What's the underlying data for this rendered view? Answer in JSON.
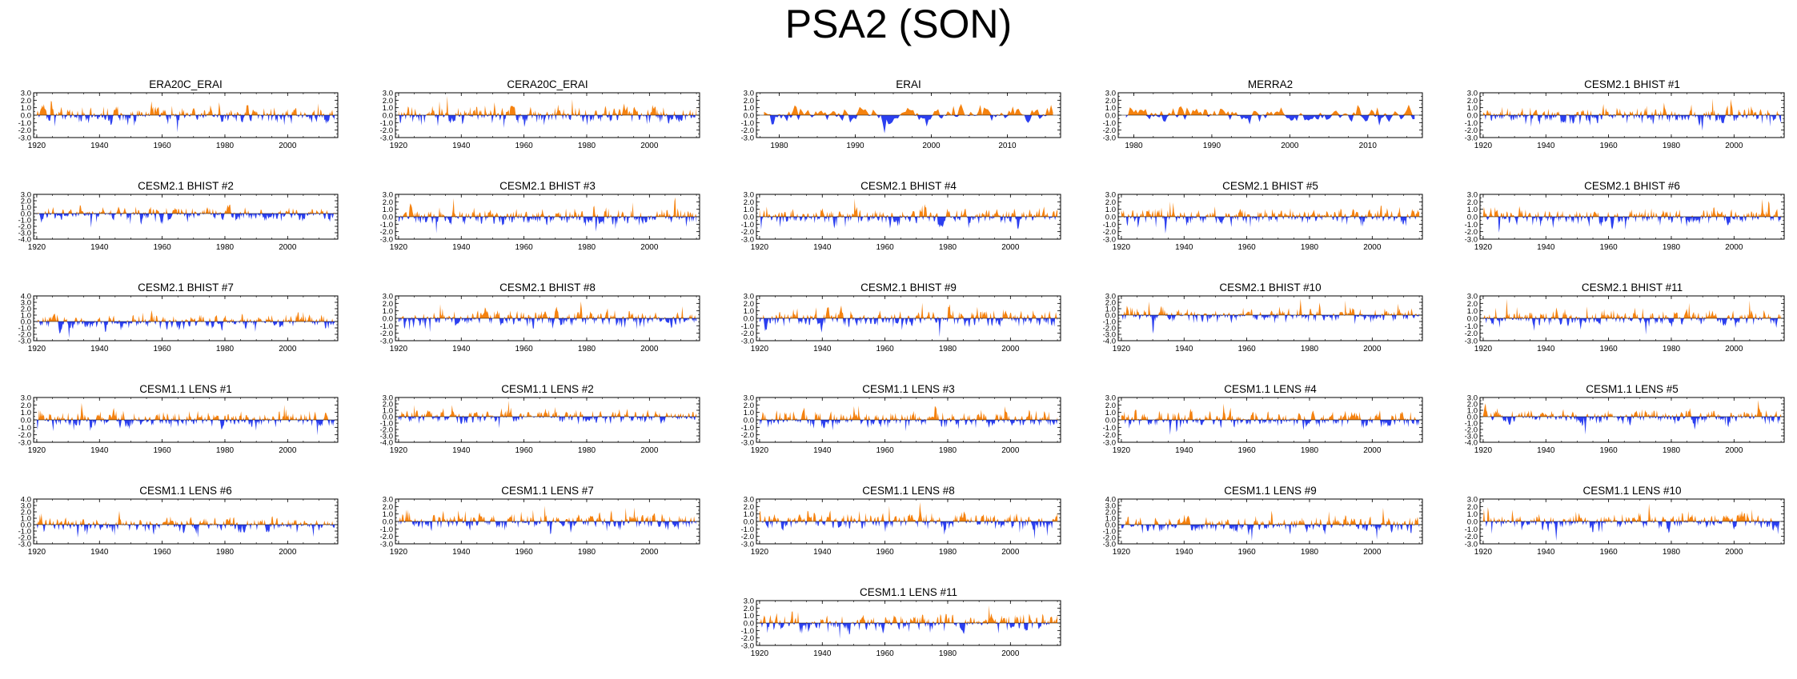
{
  "title": "PSA2 (SON)",
  "colors": {
    "positive": "#f5820f",
    "negative": "#2b3ff0",
    "axis": "#000000"
  },
  "chart_data": [
    {
      "type": "area",
      "title": "ERA20C_ERAI",
      "xlim": [
        1919,
        2016
      ],
      "xticks": [
        1920,
        1940,
        1960,
        1980,
        2000
      ],
      "ylim": [
        -3.0,
        3.0
      ],
      "yticks": [
        "3.0",
        "2.0",
        "1.0",
        "0.0",
        "-1.0",
        "-2.0",
        "-3.0"
      ],
      "seed": 11
    },
    {
      "type": "area",
      "title": "CERA20C_ERAI",
      "xlim": [
        1919,
        2016
      ],
      "xticks": [
        1920,
        1940,
        1960,
        1980,
        2000
      ],
      "ylim": [
        -3.0,
        3.0
      ],
      "yticks": [
        "3.0",
        "2.0",
        "1.0",
        "0.0",
        "-1.0",
        "-2.0",
        "-3.0"
      ],
      "seed": 23
    },
    {
      "type": "area",
      "title": "ERAI",
      "xlim": [
        1977,
        2017
      ],
      "xticks": [
        1980,
        1990,
        2000,
        2010
      ],
      "ylim": [
        -3.0,
        3.0
      ],
      "yticks": [
        "3.0",
        "2.0",
        "1.0",
        "0.0",
        "-1.0",
        "-2.0",
        "-3.0"
      ],
      "seed": 37
    },
    {
      "type": "area",
      "title": "MERRA2",
      "xlim": [
        1978,
        2017
      ],
      "xticks": [
        1980,
        1990,
        2000,
        2010
      ],
      "ylim": [
        -3.0,
        3.0
      ],
      "yticks": [
        "3.0",
        "2.0",
        "1.0",
        "0.0",
        "-1.0",
        "-2.0",
        "-3.0"
      ],
      "seed": 41
    },
    {
      "type": "area",
      "title": "CESM2.1 BHIST #1",
      "xlim": [
        1919,
        2016
      ],
      "xticks": [
        1920,
        1940,
        1960,
        1980,
        2000
      ],
      "ylim": [
        -3.0,
        3.0
      ],
      "yticks": [
        "3.0",
        "2.0",
        "1.0",
        "0.0",
        "-1.0",
        "-2.0",
        "-3.0"
      ],
      "seed": 53
    },
    {
      "type": "area",
      "title": "CESM2.1 BHIST #2",
      "xlim": [
        1919,
        2016
      ],
      "xticks": [
        1920,
        1940,
        1960,
        1980,
        2000
      ],
      "ylim": [
        -4.0,
        3.0
      ],
      "yticks": [
        "3.0",
        "2.0",
        "1.0",
        "0.0",
        "-1.0",
        "-2.0",
        "-3.0",
        "-4.0"
      ],
      "seed": 61
    },
    {
      "type": "area",
      "title": "CESM2.1 BHIST #3",
      "xlim": [
        1919,
        2016
      ],
      "xticks": [
        1920,
        1940,
        1960,
        1980,
        2000
      ],
      "ylim": [
        -3.0,
        3.0
      ],
      "yticks": [
        "3.0",
        "2.0",
        "1.0",
        "0.0",
        "-1.0",
        "-2.0",
        "-3.0"
      ],
      "seed": 71
    },
    {
      "type": "area",
      "title": "CESM2.1 BHIST #4",
      "xlim": [
        1919,
        2016
      ],
      "xticks": [
        1920,
        1940,
        1960,
        1980,
        2000
      ],
      "ylim": [
        -3.0,
        3.0
      ],
      "yticks": [
        "3.0",
        "2.0",
        "1.0",
        "0.0",
        "-1.0",
        "-2.0",
        "-3.0"
      ],
      "seed": 83
    },
    {
      "type": "area",
      "title": "CESM2.1 BHIST #5",
      "xlim": [
        1919,
        2016
      ],
      "xticks": [
        1920,
        1940,
        1960,
        1980,
        2000
      ],
      "ylim": [
        -3.0,
        3.0
      ],
      "yticks": [
        "3.0",
        "2.0",
        "1.0",
        "0.0",
        "-1.0",
        "-2.0",
        "-3.0"
      ],
      "seed": 97
    },
    {
      "type": "area",
      "title": "CESM2.1 BHIST #6",
      "xlim": [
        1919,
        2016
      ],
      "xticks": [
        1920,
        1940,
        1960,
        1980,
        2000
      ],
      "ylim": [
        -3.0,
        3.0
      ],
      "yticks": [
        "3.0",
        "2.0",
        "1.0",
        "0.0",
        "-1.0",
        "-2.0",
        "-3.0"
      ],
      "seed": 101
    },
    {
      "type": "area",
      "title": "CESM2.1 BHIST #7",
      "xlim": [
        1919,
        2016
      ],
      "xticks": [
        1920,
        1940,
        1960,
        1980,
        2000
      ],
      "ylim": [
        -3.0,
        4.0
      ],
      "yticks": [
        "4.0",
        "3.0",
        "2.0",
        "1.0",
        "0.0",
        "-1.0",
        "-2.0",
        "-3.0"
      ],
      "seed": 113
    },
    {
      "type": "area",
      "title": "CESM2.1 BHIST #8",
      "xlim": [
        1919,
        2016
      ],
      "xticks": [
        1920,
        1940,
        1960,
        1980,
        2000
      ],
      "ylim": [
        -3.0,
        3.0
      ],
      "yticks": [
        "3.0",
        "2.0",
        "1.0",
        "0.0",
        "-1.0",
        "-2.0",
        "-3.0"
      ],
      "seed": 127
    },
    {
      "type": "area",
      "title": "CESM2.1 BHIST #9",
      "xlim": [
        1919,
        2016
      ],
      "xticks": [
        1920,
        1940,
        1960,
        1980,
        2000
      ],
      "ylim": [
        -3.0,
        3.0
      ],
      "yticks": [
        "3.0",
        "2.0",
        "1.0",
        "0.0",
        "-1.0",
        "-2.0",
        "-3.0"
      ],
      "seed": 131
    },
    {
      "type": "area",
      "title": "CESM2.1 BHIST #10",
      "xlim": [
        1919,
        2016
      ],
      "xticks": [
        1920,
        1940,
        1960,
        1980,
        2000
      ],
      "ylim": [
        -4.0,
        3.0
      ],
      "yticks": [
        "3.0",
        "2.0",
        "1.0",
        "0.0",
        "-1.0",
        "-2.0",
        "-3.0",
        "-4.0"
      ],
      "seed": 139
    },
    {
      "type": "area",
      "title": "CESM2.1 BHIST #11",
      "xlim": [
        1919,
        2016
      ],
      "xticks": [
        1920,
        1940,
        1960,
        1980,
        2000
      ],
      "ylim": [
        -3.0,
        3.0
      ],
      "yticks": [
        "3.0",
        "2.0",
        "1.0",
        "0.0",
        "-1.0",
        "-2.0",
        "-3.0"
      ],
      "seed": 149
    },
    {
      "type": "area",
      "title": "CESM1.1 LENS #1",
      "xlim": [
        1919,
        2016
      ],
      "xticks": [
        1920,
        1940,
        1960,
        1980,
        2000
      ],
      "ylim": [
        -3.0,
        3.0
      ],
      "yticks": [
        "3.0",
        "2.0",
        "1.0",
        "0.0",
        "-1.0",
        "-2.0",
        "-3.0"
      ],
      "seed": 151
    },
    {
      "type": "area",
      "title": "CESM1.1 LENS #2",
      "xlim": [
        1919,
        2016
      ],
      "xticks": [
        1920,
        1940,
        1960,
        1980,
        2000
      ],
      "ylim": [
        -4.0,
        3.0
      ],
      "yticks": [
        "3.0",
        "2.0",
        "1.0",
        "0.0",
        "-1.0",
        "-2.0",
        "-3.0",
        "-4.0"
      ],
      "seed": 163
    },
    {
      "type": "area",
      "title": "CESM1.1 LENS #3",
      "xlim": [
        1919,
        2016
      ],
      "xticks": [
        1920,
        1940,
        1960,
        1980,
        2000
      ],
      "ylim": [
        -3.0,
        3.0
      ],
      "yticks": [
        "3.0",
        "2.0",
        "1.0",
        "0.0",
        "-1.0",
        "-2.0",
        "-3.0"
      ],
      "seed": 173
    },
    {
      "type": "area",
      "title": "CESM1.1 LENS #4",
      "xlim": [
        1919,
        2016
      ],
      "xticks": [
        1920,
        1940,
        1960,
        1980,
        2000
      ],
      "ylim": [
        -3.0,
        3.0
      ],
      "yticks": [
        "3.0",
        "2.0",
        "1.0",
        "0.0",
        "-1.0",
        "-2.0",
        "-3.0"
      ],
      "seed": 181
    },
    {
      "type": "area",
      "title": "CESM1.1 LENS #5",
      "xlim": [
        1919,
        2016
      ],
      "xticks": [
        1920,
        1940,
        1960,
        1980,
        2000
      ],
      "ylim": [
        -4.0,
        3.0
      ],
      "yticks": [
        "3.0",
        "2.0",
        "1.0",
        "0.0",
        "-1.0",
        "-2.0",
        "-3.0",
        "-4.0"
      ],
      "seed": 191
    },
    {
      "type": "area",
      "title": "CESM1.1 LENS #6",
      "xlim": [
        1919,
        2016
      ],
      "xticks": [
        1920,
        1940,
        1960,
        1980,
        2000
      ],
      "ylim": [
        -3.0,
        4.0
      ],
      "yticks": [
        "4.0",
        "3.0",
        "2.0",
        "1.0",
        "0.0",
        "-1.0",
        "-2.0",
        "-3.0"
      ],
      "seed": 193
    },
    {
      "type": "area",
      "title": "CESM1.1 LENS #7",
      "xlim": [
        1919,
        2016
      ],
      "xticks": [
        1920,
        1940,
        1960,
        1980,
        2000
      ],
      "ylim": [
        -3.0,
        3.0
      ],
      "yticks": [
        "3.0",
        "2.0",
        "1.0",
        "0.0",
        "-1.0",
        "-2.0",
        "-3.0"
      ],
      "seed": 197
    },
    {
      "type": "area",
      "title": "CESM1.1 LENS #8",
      "xlim": [
        1919,
        2016
      ],
      "xticks": [
        1920,
        1940,
        1960,
        1980,
        2000
      ],
      "ylim": [
        -3.0,
        3.0
      ],
      "yticks": [
        "3.0",
        "2.0",
        "1.0",
        "0.0",
        "-1.0",
        "-2.0",
        "-3.0"
      ],
      "seed": 199
    },
    {
      "type": "area",
      "title": "CESM1.1 LENS #9",
      "xlim": [
        1919,
        2016
      ],
      "xticks": [
        1920,
        1940,
        1960,
        1980,
        2000
      ],
      "ylim": [
        -3.0,
        4.0
      ],
      "yticks": [
        "4.0",
        "3.0",
        "2.0",
        "1.0",
        "0.0",
        "-1.0",
        "-2.0",
        "-3.0"
      ],
      "seed": 211
    },
    {
      "type": "area",
      "title": "CESM1.1 LENS #10",
      "xlim": [
        1919,
        2016
      ],
      "xticks": [
        1920,
        1940,
        1960,
        1980,
        2000
      ],
      "ylim": [
        -3.0,
        3.0
      ],
      "yticks": [
        "3.0",
        "2.0",
        "1.0",
        "0.0",
        "-1.0",
        "-2.0",
        "-3.0"
      ],
      "seed": 223
    },
    {
      "type": "area",
      "title": "CESM1.1 LENS #11",
      "xlim": [
        1919,
        2016
      ],
      "xticks": [
        1920,
        1940,
        1960,
        1980,
        2000
      ],
      "ylim": [
        -3.0,
        3.0
      ],
      "yticks": [
        "3.0",
        "2.0",
        "1.0",
        "0.0",
        "-1.0",
        "-2.0",
        "-3.0"
      ],
      "seed": 227
    }
  ]
}
